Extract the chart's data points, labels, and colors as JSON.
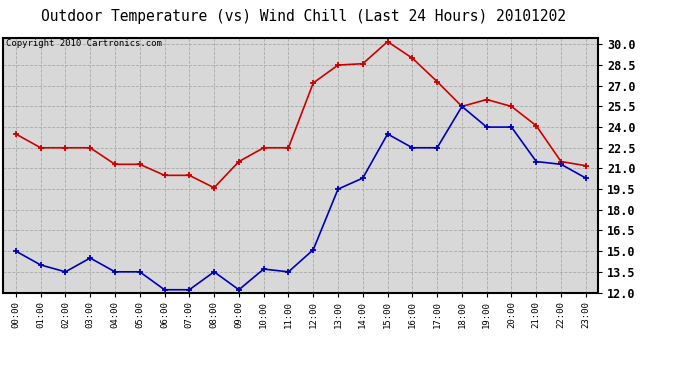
{
  "title": "Outdoor Temperature (vs) Wind Chill (Last 24 Hours) 20101202",
  "copyright": "Copyright 2010 Cartronics.com",
  "x_labels": [
    "00:00",
    "01:00",
    "02:00",
    "03:00",
    "04:00",
    "05:00",
    "06:00",
    "07:00",
    "08:00",
    "09:00",
    "10:00",
    "11:00",
    "12:00",
    "13:00",
    "14:00",
    "15:00",
    "16:00",
    "17:00",
    "18:00",
    "19:00",
    "20:00",
    "21:00",
    "22:00",
    "23:00"
  ],
  "temp_red": [
    23.5,
    22.5,
    22.5,
    22.5,
    21.3,
    21.3,
    20.5,
    20.5,
    19.6,
    21.5,
    22.5,
    22.5,
    27.2,
    28.5,
    28.6,
    30.2,
    29.0,
    27.3,
    25.5,
    26.0,
    25.5,
    24.1,
    21.5,
    21.2
  ],
  "wind_chill_blue": [
    15.0,
    14.0,
    13.5,
    14.5,
    13.5,
    13.5,
    12.2,
    12.2,
    13.5,
    12.2,
    13.7,
    13.5,
    15.1,
    19.5,
    20.3,
    23.5,
    22.5,
    22.5,
    25.5,
    24.0,
    24.0,
    21.5,
    21.3,
    20.3
  ],
  "ylim": [
    12.0,
    30.5
  ],
  "yticks": [
    12.0,
    13.5,
    15.0,
    16.5,
    18.0,
    19.5,
    21.0,
    22.5,
    24.0,
    25.5,
    27.0,
    28.5,
    30.0
  ],
  "red_color": "#cc0000",
  "blue_color": "#0000bb",
  "bg_color": "#d8d8d8",
  "grid_color": "#aaaaaa",
  "title_fontsize": 10.5,
  "copyright_fontsize": 6.5,
  "tick_fontsize": 8.5,
  "xtick_fontsize": 6.5
}
